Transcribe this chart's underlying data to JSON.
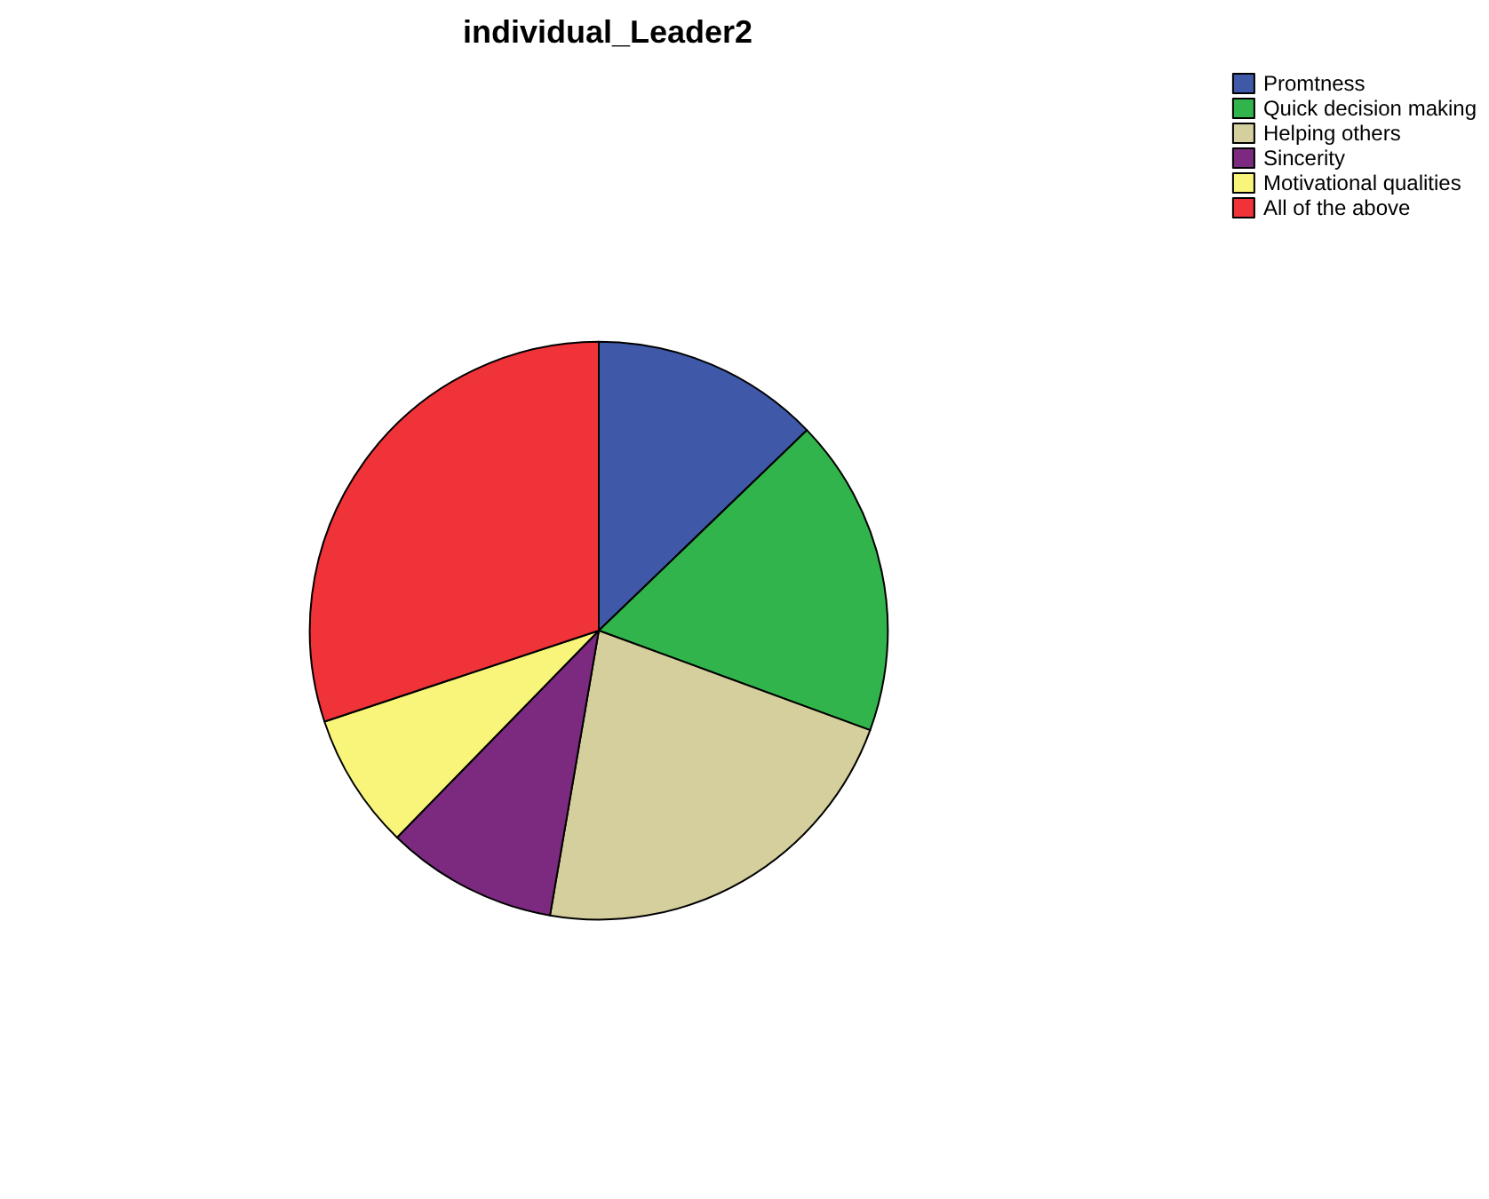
{
  "chart_data": {
    "type": "pie",
    "title": "individual_Leader2",
    "categories": [
      "Promtness",
      "Quick decision making",
      "Helping others",
      "Sincerity",
      "Motivational qualities",
      "All of the above"
    ],
    "values": [
      12.8,
      17.8,
      22.1,
      9.6,
      7.6,
      30.1
    ],
    "colors": [
      "#3f58a8",
      "#31b44b",
      "#d4cf9c",
      "#7b2a7f",
      "#f8f57a",
      "#ef3338"
    ],
    "legend": "top right"
  }
}
